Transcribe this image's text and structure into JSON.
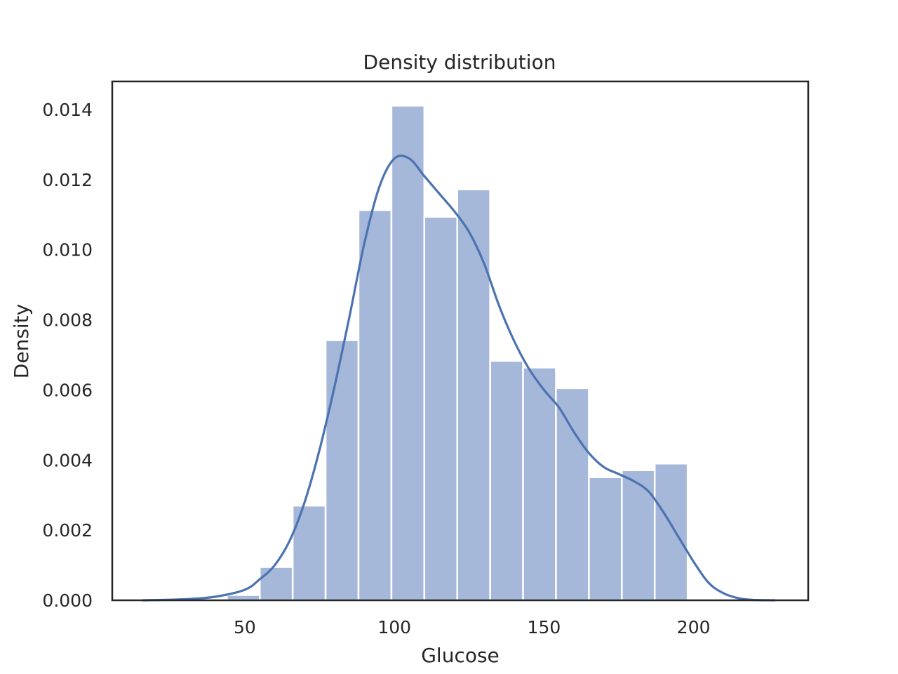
{
  "chart_data": {
    "type": "bar",
    "title": "Density distribution",
    "xlabel": "Glucose",
    "ylabel": "Density",
    "xlim": [
      5.7,
      238.3
    ],
    "ylim": [
      0,
      0.0148
    ],
    "xticks": [
      50,
      100,
      150,
      200
    ],
    "yticks": [
      0.0,
      0.002,
      0.004,
      0.006,
      0.008,
      0.01,
      0.012,
      0.014
    ],
    "ytick_labels": [
      "0.000",
      "0.002",
      "0.004",
      "0.006",
      "0.008",
      "0.010",
      "0.012",
      "0.014"
    ],
    "grid": false,
    "bins": [
      {
        "x0": 44.0,
        "x1": 55.0,
        "density": 0.00015
      },
      {
        "x0": 55.0,
        "x1": 66.0,
        "density": 0.00095
      },
      {
        "x0": 66.0,
        "x1": 77.0,
        "density": 0.0027
      },
      {
        "x0": 77.0,
        "x1": 88.0,
        "density": 0.00742
      },
      {
        "x0": 88.0,
        "x1": 99.0,
        "density": 0.01113
      },
      {
        "x0": 99.0,
        "x1": 110.0,
        "density": 0.01411
      },
      {
        "x0": 110.0,
        "x1": 121.0,
        "density": 0.01094
      },
      {
        "x0": 121.0,
        "x1": 132.0,
        "density": 0.01172
      },
      {
        "x0": 132.0,
        "x1": 143.0,
        "density": 0.00683
      },
      {
        "x0": 143.0,
        "x1": 154.0,
        "density": 0.00664
      },
      {
        "x0": 154.0,
        "x1": 165.0,
        "density": 0.00605
      },
      {
        "x0": 165.0,
        "x1": 176.0,
        "density": 0.00351
      },
      {
        "x0": 176.0,
        "x1": 187.0,
        "density": 0.00371
      },
      {
        "x0": 187.0,
        "x1": 198.0,
        "density": 0.0039
      }
    ],
    "kde": {
      "x": [
        16,
        30,
        40,
        50,
        55,
        60,
        65,
        70,
        75,
        80,
        85,
        90,
        95,
        100,
        105,
        110,
        115,
        120,
        125,
        130,
        135,
        140,
        145,
        150,
        155,
        160,
        165,
        170,
        175,
        180,
        185,
        190,
        195,
        200,
        205,
        210,
        215,
        220,
        227
      ],
      "y": [
        0.0,
        3e-05,
        0.0001,
        0.0003,
        0.0006,
        0.001,
        0.0017,
        0.0028,
        0.0043,
        0.0061,
        0.0081,
        0.0102,
        0.0118,
        0.0126,
        0.0126,
        0.0121,
        0.0116,
        0.0111,
        0.0105,
        0.0096,
        0.0084,
        0.0074,
        0.0066,
        0.006,
        0.0055,
        0.0048,
        0.0042,
        0.0038,
        0.0036,
        0.0034,
        0.0031,
        0.0025,
        0.0018,
        0.0011,
        0.0005,
        0.0002,
        6e-05,
        1e-05,
        0.0
      ]
    },
    "colors": {
      "bar": "#a5b8d9",
      "bar_edge": "#ffffff",
      "kde": "#4c72b0",
      "axes": "#262626"
    }
  }
}
